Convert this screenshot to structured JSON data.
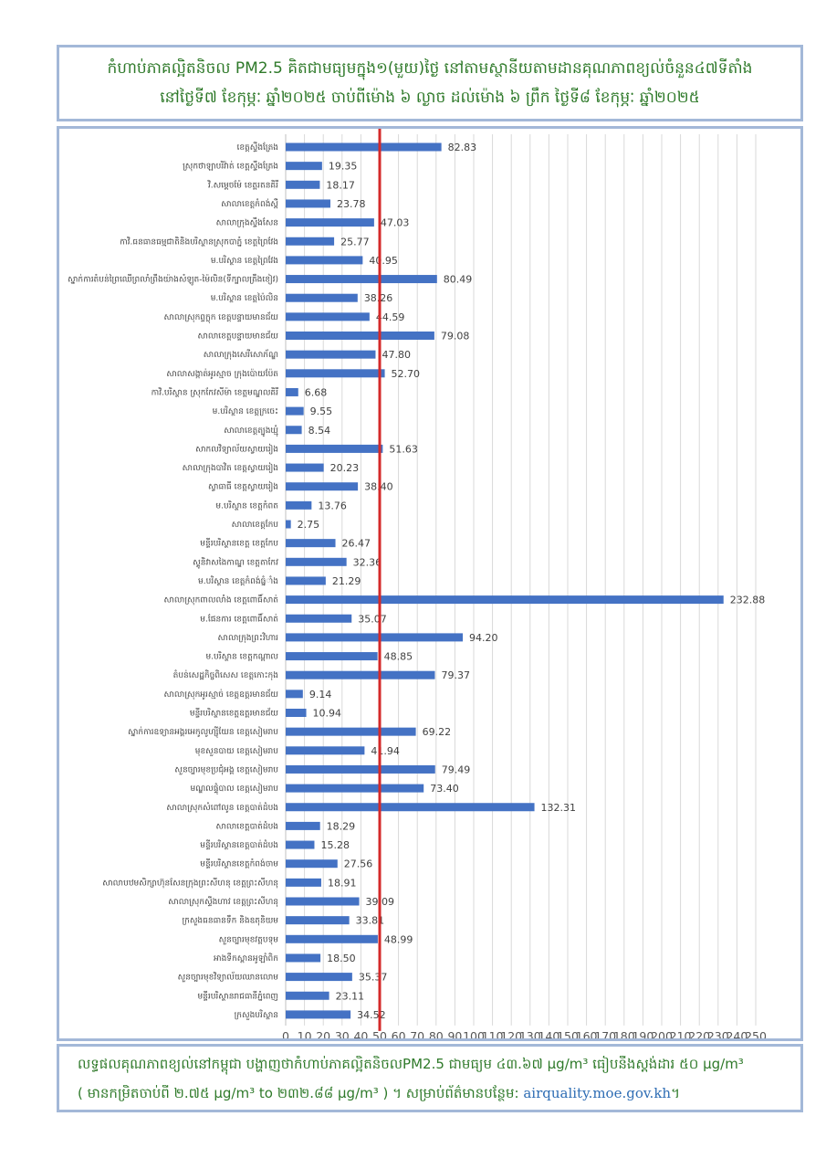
{
  "header": {
    "line1": "កំហាប់ភាគល្អិតនិចល PM2.5 គិតជាមធ្យមក្នុង១(មួយ)ថ្ងៃ នៅតាមស្ថានីយតាមដានគុណភាពខ្យល់ចំនួន៤៧ទីតាំង",
    "line2": "នៅថ្ងៃទី៧ ខែកុម្ភៈ ឆ្នាំ២០២៥ ចាប់ពីម៉ោង ៦ ល្ងាច ដល់ម៉ោង ៦ ព្រឹក ថ្ងៃទី៨ ខែកុម្ភៈ ឆ្នាំ២០២៥"
  },
  "chart_data": {
    "type": "bar",
    "orientation": "horizontal",
    "xlim": [
      0,
      250
    ],
    "x_ticks": [
      "0",
      "10",
      "20",
      "30",
      "40",
      "50",
      "60",
      "70",
      "80",
      "90",
      "100",
      "110",
      "120",
      "130",
      "140",
      "150",
      "160",
      "170",
      "180",
      "190",
      "200",
      "210",
      "220",
      "230",
      "240",
      "250"
    ],
    "reference_line": {
      "value": 50,
      "color": "#d42a2a"
    },
    "grid": true,
    "bar_color": "#4472c4",
    "categories": [
      "ខេត្តស្ទឹងត្រែង",
      "ស្រុកថាឡាបរិវ៉ាត់ ខេត្តស្ទឹងត្រែង",
      "វិ.សម្តេចម៉ែ ខេត្តរតនគិរី",
      "សាលាខេត្តកំពង់ស្ពឺ",
      "សាលាក្រុងស្ទឹងសែន",
      "កាវិ.ធនធានធម្មជាតិនិងបរិស្ថានស្រុកបាភ្នំ ខេត្តព្រៃវែង",
      "ម.បរិស្ថាន ខេត្តព្រៃវែង",
      "ស្នាក់ការតំបន់ព្រៃឈើព្រលាំព្រឹងយ៉ាងសំឡូត-ម៉ៃលិន(ទីក្បាលត្រឹងខៀវ)",
      "ម.បរិស្ថាន ខេត្តប៉ៃលិន",
      "សាលាស្រុកព្ទក្លុក ខេត្តបន្ទាយមានជ័យ",
      "សាលាខេត្តបន្ទាយមានជ័យ",
      "សាលាក្រុងសេរីសោភ័ណ្ឌ",
      "សាលាសង្កាត់អូរស្មាច ក្រុងប៉ោយប៉ែត",
      "កាវិ.បរិស្ថាន ស្រុកកែវសីម៉ា ខេត្តមណ្ឌលគិរី",
      "ម.បរិស្ថាន ខេត្តក្រចេះ",
      "សាលាខេត្តត្បូងឃ្មុំ",
      "សាកលវិទ្យាល័យស្វាយរៀង",
      "សាលាក្រុងបាវិត ខេត្តស្វាយរៀង",
      "ស្វាធាធី ខេត្តស្វាយរៀង",
      "ម.បរិស្ថាន ខេត្តកំពត",
      "សាលាខេត្តកែប",
      "មន្ទីរបរិស្ថានខេត្ត ខេត្តកែប",
      "ស្ទូនិវាសងៃកាណ្ឌ ខេត្តតាកែវ",
      "ម.បរិស្ថាន ខេត្តកំពង់ធំ្នាំង",
      "សាលាស្រុកពាលលាំង ខេត្តពោធិ៍សាត់",
      "ម.ផែនការ ខេត្តពោធិ៍សាត់",
      "សាលាក្រុងព្រះវិហារ",
      "ម.បរិស្ថាន ខេត្តកណ្តាល",
      "តំបន់សេដ្ឋកិច្ចពិសេស ខេត្តកោះកុង",
      "សាលាស្រុកអូរស្មាច់ ខេត្តឧត្តរមានជ័យ",
      "មន្ទីរបរិស្ថានខេត្តឧត្តរមានជ័យ",
      "ស្នាក់ការឧទ្យានអង្គរអេកូលូហ្ស៊ីយែន ខេត្តសៀមរាប",
      "មុខសួនបាយ ខេត្តសៀមរាប",
      "សួនច្បារមុខប្រជុំអង្គ ខេត្តសៀមរាប",
      "មណ្ឌលផ្ទុំបាល ខេត្តសៀមរាប",
      "សាលាស្រុកសំពៅលូន ខេត្តបាត់ដំបង",
      "សាលាខេត្តបាត់ដំបង",
      "មន្ទីរបរិស្ថានខេត្តបាត់ដំបង",
      "មន្ទីរបរិស្ថានខេត្តកំពង់ចាម",
      "សាលាបឋមសិក្សាហ៊ុនសែនក្រុងព្រះសីហនុ ខេត្តព្រះសីហនុ",
      "សាលាស្រុកស្ទឹងហាវ ខេត្តព្រះសីហនុ",
      "ក្រសួងធនធានទឹក និងឧតុនិយម",
      "សួនច្បារមុខវត្តបទុម",
      "អាងទឹកស្ពានអូឡាំពិក",
      "សួនច្បារមុខវិទ្យាល័យឈានលោម",
      "មន្ទីរបរិស្ថានរាជធានីភ្នំពេញ",
      "ក្រសួងបរិស្ថាន"
    ],
    "values": [
      82.83,
      19.35,
      18.17,
      23.78,
      47.03,
      25.77,
      40.95,
      80.49,
      38.26,
      44.59,
      79.08,
      47.8,
      52.7,
      6.68,
      9.55,
      8.54,
      51.63,
      20.23,
      38.4,
      13.76,
      2.75,
      26.47,
      32.36,
      21.29,
      232.88,
      35.07,
      94.2,
      48.85,
      79.37,
      9.14,
      10.94,
      69.22,
      41.94,
      79.49,
      73.4,
      132.31,
      18.29,
      15.28,
      27.56,
      18.91,
      39.09,
      33.81,
      48.99,
      18.5,
      35.37,
      23.11,
      34.52
    ],
    "value_labels": [
      "82.83",
      "19.35",
      "18.17",
      "23.78",
      "47.03",
      "25.77",
      "40.95",
      "80.49",
      "38.26",
      "44.59",
      "79.08",
      "47.80",
      "52.70",
      "6.68",
      "9.55",
      "8.54",
      "51.63",
      "20.23",
      "38.40",
      "13.76",
      "2.75",
      "26.47",
      "32.36",
      "21.29",
      "232.88",
      "35.07",
      "94.20",
      "48.85",
      "79.37",
      "9.14",
      "10.94",
      "69.22",
      "41.94",
      "79.49",
      "73.40",
      "132.31",
      "18.29",
      "15.28",
      "27.56",
      "18.91",
      "39.09",
      "33.81",
      "48.99",
      "18.50",
      "35.37",
      "23.11",
      "34.52"
    ]
  },
  "footer": {
    "line1_text": "លទ្ធផលគុណភាពខ្យល់នៅកម្ពុជា បង្ហាញថាកំហាប់ភាគល្អិតនិចលPM2.5 ជាមធ្យម ៤៣.៦៧ μg/m³ ធៀបនឹងស្តង់ដារ ៥០ μg/m³",
    "line2_text": "( មានកម្រិតចាប់ពី ២.៧៥ μg/m³ to ២៣២.៨៨ μg/m³ ) ។ សម្រាប់ព័ត៌មានបន្ថែម: ",
    "link": "airquality.moe.gov.kh",
    "line2_end": "។"
  }
}
